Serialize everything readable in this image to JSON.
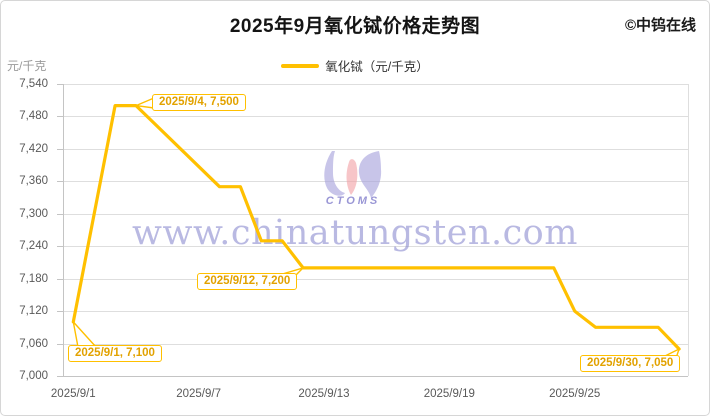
{
  "header": {
    "title": "2025年9月氧化铽价格走势图",
    "copyright": "©中钨在线"
  },
  "legend": {
    "label": "氧化铽（元/千克）",
    "line_color": "#FFC000"
  },
  "y_axis": {
    "unit": "元/千克",
    "ticks": [
      "7,540",
      "7,480",
      "7,420",
      "7,360",
      "7,300",
      "7,240",
      "7,180",
      "7,120",
      "7,060",
      "7,000"
    ]
  },
  "x_axis": {
    "labels": [
      "2025/9/1",
      "2025/9/7",
      "2025/9/13",
      "2025/9/19",
      "2025/9/25"
    ]
  },
  "chart_data": {
    "type": "line",
    "title": "2025年9月氧化铽价格走势图",
    "xlabel": "",
    "ylabel": "元/千克",
    "ylim": [
      7000,
      7540
    ],
    "ytick_step": 60,
    "grid": true,
    "legend_position": "top-center",
    "series": [
      {
        "name": "氧化铽（元/千克）",
        "color": "#FFC000",
        "points": [
          {
            "date": "2025/9/1",
            "day": 1,
            "value": 7100
          },
          {
            "date": "2025/9/3",
            "day": 3,
            "value": 7500
          },
          {
            "date": "2025/9/4",
            "day": 4,
            "value": 7500
          },
          {
            "date": "2025/9/8",
            "day": 8,
            "value": 7350
          },
          {
            "date": "2025/9/9",
            "day": 9,
            "value": 7350
          },
          {
            "date": "2025/9/10",
            "day": 10,
            "value": 7250
          },
          {
            "date": "2025/9/11",
            "day": 11,
            "value": 7250
          },
          {
            "date": "2025/9/12",
            "day": 12,
            "value": 7200
          },
          {
            "date": "2025/9/24",
            "day": 24,
            "value": 7200
          },
          {
            "date": "2025/9/25",
            "day": 25,
            "value": 7120
          },
          {
            "date": "2025/9/26",
            "day": 26,
            "value": 7090
          },
          {
            "date": "2025/9/29",
            "day": 29,
            "value": 7090
          },
          {
            "date": "2025/9/30",
            "day": 30,
            "value": 7050
          }
        ]
      }
    ],
    "annotations": [
      {
        "label": "2025/9/1, 7,100",
        "day": 1,
        "value": 7100
      },
      {
        "label": "2025/9/4, 7,500",
        "day": 4,
        "value": 7500
      },
      {
        "label": "2025/9/12, 7,200",
        "day": 12,
        "value": 7200
      },
      {
        "label": "2025/9/30, 7,050",
        "day": 30,
        "value": 7050
      }
    ]
  },
  "watermark": {
    "url": "www.chinatungsten.com",
    "logo_text": "CTOMS"
  },
  "colors": {
    "accent": "#FFC000",
    "annotation_text": "#E2A200",
    "grid": "#DEDEDE",
    "axis": "#C4C4C4",
    "tick_text": "#595959",
    "watermark": "#8080CA"
  }
}
